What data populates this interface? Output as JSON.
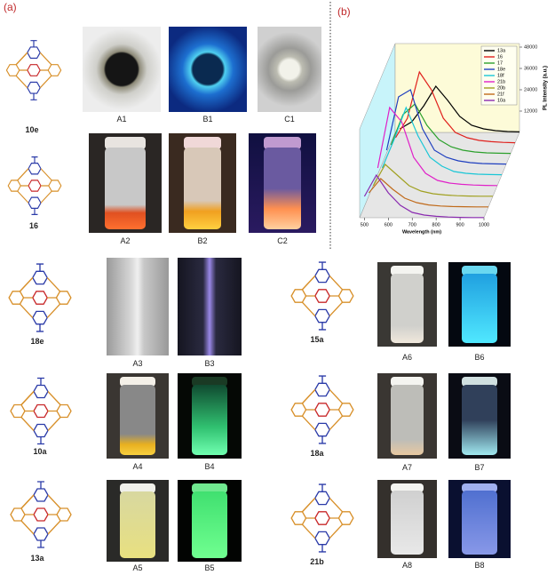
{
  "panels": {
    "a": "(a)",
    "b": "(b)"
  },
  "compounds": [
    "10e",
    "16",
    "18e",
    "10a",
    "13a",
    "15a",
    "18a",
    "21b"
  ],
  "photos": [
    "A1",
    "B1",
    "C1",
    "A2",
    "B2",
    "C2",
    "A3",
    "B3",
    "A4",
    "B4",
    "A5",
    "B5",
    "A6",
    "B6",
    "A7",
    "B7",
    "A8",
    "B8"
  ],
  "chart_data": {
    "type": "line",
    "x_label": "Wavelength (nm)",
    "y_label": "PL Intensity (a.u.)",
    "x": [
      500,
      550,
      600,
      650,
      700,
      750,
      800,
      850,
      900,
      950,
      1000
    ],
    "xlim": [
      480,
      1000
    ],
    "xticks": [
      500,
      600,
      700,
      800,
      900,
      1000
    ],
    "ylim": [
      0,
      50000
    ],
    "yticks": [
      12000,
      24000,
      36000,
      48000
    ],
    "series": [
      {
        "name": "13a",
        "color": "#000000",
        "values": [
          2000,
          6000,
          15000,
          26000,
          18000,
          9000,
          4000,
          2000,
          1000,
          500,
          300
        ]
      },
      {
        "name": "16",
        "color": "#e0201c",
        "values": [
          3000,
          14000,
          40000,
          30000,
          14000,
          6000,
          3000,
          1500,
          800,
          400,
          200
        ]
      },
      {
        "name": "17",
        "color": "#2ca02c",
        "values": [
          5000,
          22000,
          28000,
          16000,
          8000,
          4000,
          2000,
          1000,
          500,
          300,
          200
        ]
      },
      {
        "name": "18e",
        "color": "#1f3fbf",
        "values": [
          8000,
          38000,
          42000,
          20000,
          8000,
          4000,
          2000,
          1000,
          500,
          300,
          200
        ]
      },
      {
        "name": "18f",
        "color": "#19c6d6",
        "values": [
          4000,
          20000,
          38000,
          22000,
          10000,
          5000,
          2000,
          1000,
          500,
          300,
          200
        ]
      },
      {
        "name": "21b",
        "color": "#e020c8",
        "values": [
          10000,
          44000,
          36000,
          16000,
          7000,
          3000,
          1500,
          800,
          400,
          200,
          100
        ]
      },
      {
        "name": "20b",
        "color": "#a0a020",
        "values": [
          6000,
          18000,
          12000,
          6000,
          3000,
          1500,
          800,
          400,
          200,
          100,
          100
        ]
      },
      {
        "name": "21f",
        "color": "#c06a1a",
        "values": [
          8000,
          16000,
          10000,
          5000,
          2500,
          1200,
          600,
          300,
          200,
          100,
          100
        ]
      },
      {
        "name": "10a",
        "color": "#8a2ab0",
        "values": [
          12000,
          24000,
          14000,
          7000,
          3000,
          1500,
          800,
          400,
          200,
          100,
          100
        ]
      }
    ]
  }
}
